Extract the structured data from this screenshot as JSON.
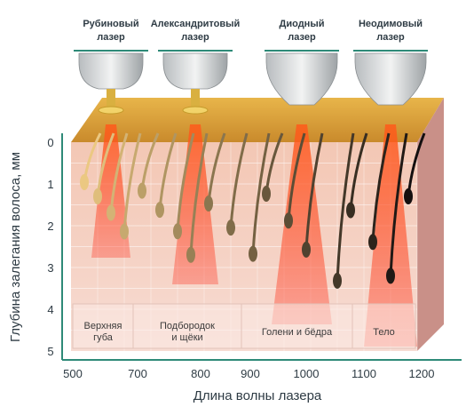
{
  "lasers": [
    {
      "lines": [
        "Рубиновый",
        "лазер"
      ]
    },
    {
      "lines": [
        "Александритовый",
        "лазер"
      ]
    },
    {
      "lines": [
        "Диодный",
        "лазер"
      ]
    },
    {
      "lines": [
        "Неодимовый",
        "лазер"
      ]
    }
  ],
  "zones": [
    {
      "lines": [
        "Верхняя",
        "губа"
      ]
    },
    {
      "lines": [
        "Подбородок",
        "и щёки"
      ]
    },
    {
      "lines": [
        "Голени и бёдра"
      ]
    },
    {
      "lines": [
        "Тело"
      ]
    }
  ],
  "y_axis": {
    "title": "Глубина залегания волоса, мм",
    "ticks": [
      0,
      1,
      2,
      3,
      4,
      5
    ]
  },
  "x_axis": {
    "title": "Длина волны лазера",
    "ticks": [
      500,
      700,
      800,
      900,
      1000,
      1100,
      1200
    ]
  }
}
